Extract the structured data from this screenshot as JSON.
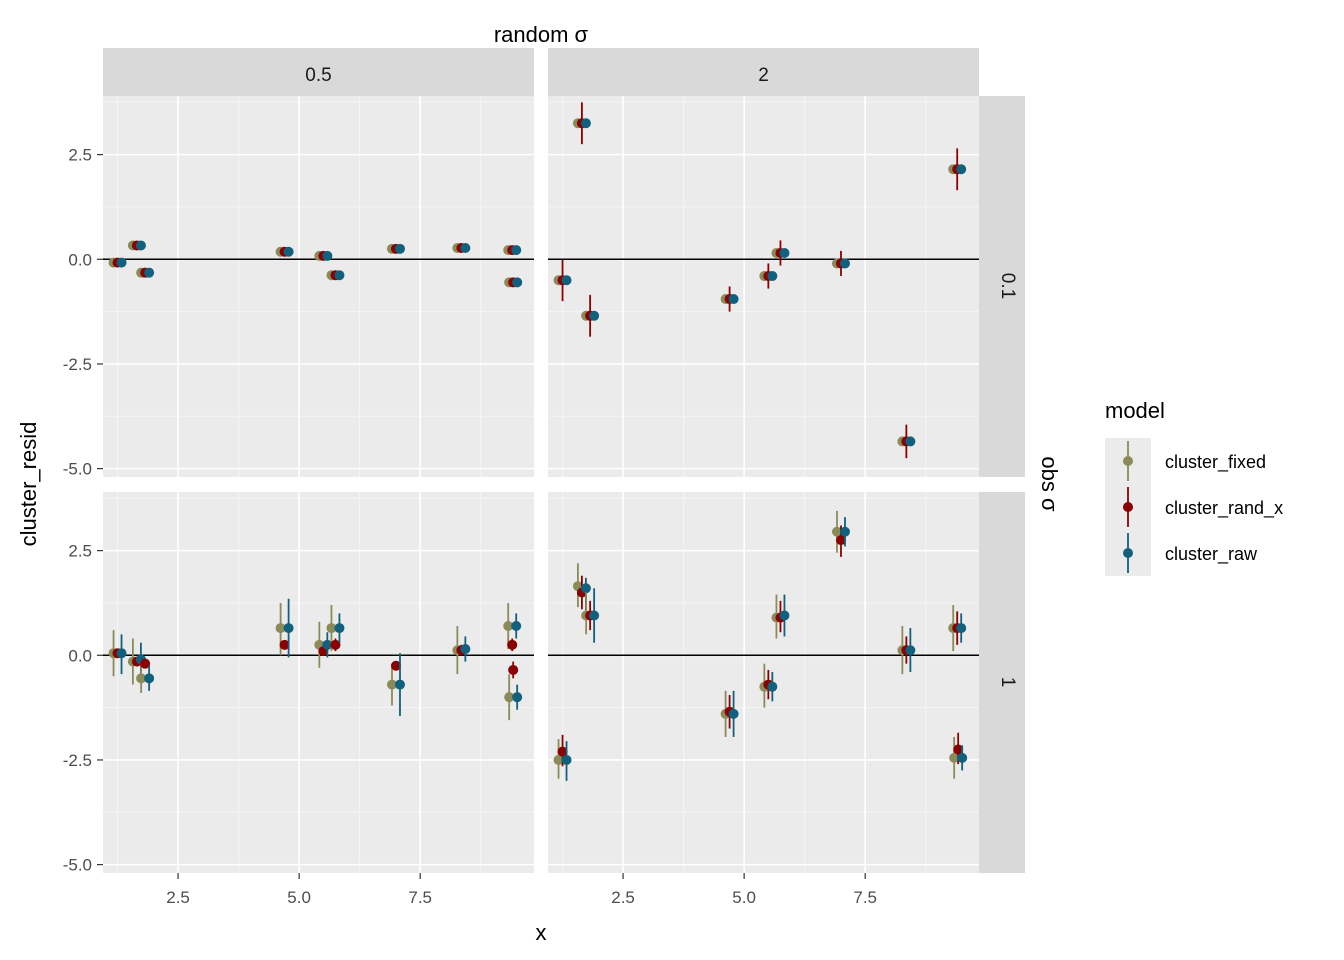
{
  "chart_data": {
    "type": "scatter",
    "geom": "pointrange",
    "facet_col_title": "random σ",
    "facet_row_title": "obs σ",
    "facet_cols": [
      "0.5",
      "2"
    ],
    "facet_rows": [
      "0.1",
      "1"
    ],
    "xlabel": "x",
    "ylabel": "cluster_resid",
    "xlim": [
      0.95,
      9.85
    ],
    "ylim": [
      -5.2,
      3.9
    ],
    "x_ticks": [
      2.5,
      5.0,
      7.5
    ],
    "x_tick_labels": [
      "2.5",
      "5.0",
      "7.5"
    ],
    "y_ticks": [
      2.5,
      0.0,
      -2.5,
      -5.0
    ],
    "y_tick_labels": [
      "2.5",
      "0.0",
      "-2.5",
      "-5.0"
    ],
    "hline": 0,
    "grid": true,
    "legend": {
      "title": "model",
      "position": "right",
      "entries": [
        "cluster_fixed",
        "cluster_rand_x",
        "cluster_raw"
      ]
    },
    "series": [
      {
        "name": "cluster_fixed",
        "color": "#8b8b5a"
      },
      {
        "name": "cluster_rand_x",
        "color": "#8b0000"
      },
      {
        "name": "cluster_raw",
        "color": "#10607e"
      }
    ],
    "panels": [
      {
        "col": "0.5",
        "row": "0.1",
        "points": [
          {
            "x": 1.25,
            "fixed": [
              -0.08,
              -0.12,
              -0.04
            ],
            "rand_x": [
              -0.08,
              -0.12,
              -0.04
            ],
            "raw": [
              -0.08,
              -0.12,
              -0.04
            ]
          },
          {
            "x": 1.65,
            "fixed": [
              0.33,
              0.28,
              0.38
            ],
            "rand_x": [
              0.33,
              0.28,
              0.38
            ],
            "raw": [
              0.33,
              0.28,
              0.38
            ]
          },
          {
            "x": 1.82,
            "fixed": [
              -0.32,
              -0.38,
              -0.26
            ],
            "rand_x": [
              -0.32,
              -0.4,
              -0.24
            ],
            "raw": [
              -0.32,
              -0.38,
              -0.26
            ]
          },
          {
            "x": 4.7,
            "fixed": [
              0.18,
              0.13,
              0.23
            ],
            "rand_x": [
              0.18,
              0.13,
              0.23
            ],
            "raw": [
              0.18,
              0.13,
              0.23
            ]
          },
          {
            "x": 5.5,
            "fixed": [
              0.08,
              0.03,
              0.13
            ],
            "rand_x": [
              0.08,
              0.03,
              0.13
            ],
            "raw": [
              0.08,
              0.03,
              0.13
            ]
          },
          {
            "x": 5.75,
            "fixed": [
              -0.38,
              -0.44,
              -0.32
            ],
            "rand_x": [
              -0.38,
              -0.44,
              -0.32
            ],
            "raw": [
              -0.38,
              -0.44,
              -0.32
            ]
          },
          {
            "x": 7.0,
            "fixed": [
              0.25,
              0.2,
              0.3
            ],
            "rand_x": [
              0.25,
              0.2,
              0.3
            ],
            "raw": [
              0.25,
              0.2,
              0.3
            ]
          },
          {
            "x": 8.35,
            "fixed": [
              0.27,
              0.22,
              0.32
            ],
            "rand_x": [
              0.27,
              0.22,
              0.32
            ],
            "raw": [
              0.27,
              0.22,
              0.32
            ]
          },
          {
            "x": 9.4,
            "fixed": [
              0.22,
              0.17,
              0.27
            ],
            "rand_x": [
              0.22,
              0.17,
              0.27
            ],
            "raw": [
              0.22,
              0.17,
              0.27
            ]
          },
          {
            "x": 9.42,
            "fixed": [
              -0.55,
              -0.61,
              -0.49
            ],
            "rand_x": [
              -0.55,
              -0.61,
              -0.49
            ],
            "raw": [
              -0.55,
              -0.61,
              -0.49
            ]
          }
        ]
      },
      {
        "col": "2",
        "row": "0.1",
        "points": [
          {
            "x": 1.25,
            "fixed": [
              -0.5,
              -0.55,
              -0.45
            ],
            "rand_x": [
              -0.5,
              -1.0,
              0.0
            ],
            "raw": [
              -0.5,
              -0.55,
              -0.45
            ]
          },
          {
            "x": 1.65,
            "fixed": [
              3.25,
              3.2,
              3.3
            ],
            "rand_x": [
              3.25,
              2.75,
              3.75
            ],
            "raw": [
              3.25,
              3.2,
              3.3
            ]
          },
          {
            "x": 1.82,
            "fixed": [
              -1.35,
              -1.4,
              -1.3
            ],
            "rand_x": [
              -1.35,
              -1.85,
              -0.85
            ],
            "raw": [
              -1.35,
              -1.4,
              -1.3
            ]
          },
          {
            "x": 4.7,
            "fixed": [
              -0.95,
              -1.0,
              -0.9
            ],
            "rand_x": [
              -0.95,
              -1.25,
              -0.65
            ],
            "raw": [
              -0.95,
              -1.0,
              -0.9
            ]
          },
          {
            "x": 5.5,
            "fixed": [
              -0.4,
              -0.45,
              -0.35
            ],
            "rand_x": [
              -0.4,
              -0.7,
              -0.1
            ],
            "raw": [
              -0.4,
              -0.45,
              -0.35
            ]
          },
          {
            "x": 5.75,
            "fixed": [
              0.15,
              0.1,
              0.2
            ],
            "rand_x": [
              0.15,
              -0.15,
              0.45
            ],
            "raw": [
              0.15,
              0.1,
              0.2
            ]
          },
          {
            "x": 7.0,
            "fixed": [
              -0.1,
              -0.15,
              -0.05
            ],
            "rand_x": [
              -0.1,
              -0.4,
              0.2
            ],
            "raw": [
              -0.1,
              -0.15,
              -0.05
            ]
          },
          {
            "x": 8.35,
            "fixed": [
              -4.35,
              -4.4,
              -4.3
            ],
            "rand_x": [
              -4.35,
              -4.75,
              -3.95
            ],
            "raw": [
              -4.35,
              -4.4,
              -4.3
            ]
          },
          {
            "x": 9.4,
            "fixed": [
              2.15,
              2.1,
              2.2
            ],
            "rand_x": [
              2.15,
              1.65,
              2.65
            ],
            "raw": [
              2.15,
              2.1,
              2.2
            ]
          }
        ]
      },
      {
        "col": "0.5",
        "row": "1",
        "points": [
          {
            "x": 1.25,
            "fixed": [
              0.05,
              -0.5,
              0.6
            ],
            "rand_x": [
              0.05,
              0.0,
              0.1
            ],
            "raw": [
              0.05,
              -0.45,
              0.5
            ]
          },
          {
            "x": 1.65,
            "fixed": [
              -0.15,
              -0.7,
              0.4
            ],
            "rand_x": [
              -0.15,
              -0.2,
              -0.1
            ],
            "raw": [
              -0.1,
              -0.6,
              0.3
            ]
          },
          {
            "x": 1.82,
            "fixed": [
              -0.55,
              -0.9,
              -0.2
            ],
            "rand_x": [
              -0.2,
              -0.3,
              -0.1
            ],
            "raw": [
              -0.55,
              -0.85,
              -0.25
            ]
          },
          {
            "x": 4.7,
            "fixed": [
              0.65,
              0.0,
              1.25
            ],
            "rand_x": [
              0.25,
              0.15,
              0.35
            ],
            "raw": [
              0.65,
              -0.05,
              1.35
            ]
          },
          {
            "x": 5.5,
            "fixed": [
              0.25,
              -0.3,
              0.8
            ],
            "rand_x": [
              0.1,
              0.0,
              0.2
            ],
            "raw": [
              0.25,
              -0.05,
              0.55
            ]
          },
          {
            "x": 5.75,
            "fixed": [
              0.65,
              0.1,
              1.2
            ],
            "rand_x": [
              0.25,
              0.1,
              0.4
            ],
            "raw": [
              0.65,
              0.3,
              1.0
            ]
          },
          {
            "x": 7.0,
            "fixed": [
              -0.7,
              -1.2,
              -0.2
            ],
            "rand_x": [
              -0.25,
              -0.35,
              -0.15
            ],
            "raw": [
              -0.7,
              -1.45,
              0.05
            ]
          },
          {
            "x": 8.35,
            "fixed": [
              0.12,
              -0.45,
              0.7
            ],
            "rand_x": [
              0.12,
              0.0,
              0.25
            ],
            "raw": [
              0.15,
              -0.15,
              0.45
            ]
          },
          {
            "x": 9.4,
            "fixed": [
              0.7,
              0.15,
              1.25
            ],
            "rand_x": [
              0.25,
              0.1,
              0.4
            ],
            "raw": [
              0.7,
              0.4,
              1.0
            ]
          },
          {
            "x": 9.42,
            "fixed": [
              -1.0,
              -1.55,
              -0.45
            ],
            "rand_x": [
              -0.35,
              -0.55,
              -0.15
            ],
            "raw": [
              -1.0,
              -1.3,
              -0.7
            ]
          }
        ]
      },
      {
        "col": "2",
        "row": "1",
        "points": [
          {
            "x": 1.25,
            "fixed": [
              -2.5,
              -2.95,
              -2.0
            ],
            "rand_x": [
              -2.3,
              -2.65,
              -1.9
            ],
            "raw": [
              -2.5,
              -3.0,
              -2.05
            ]
          },
          {
            "x": 1.65,
            "fixed": [
              1.65,
              1.15,
              2.2
            ],
            "rand_x": [
              1.5,
              1.1,
              1.9
            ],
            "raw": [
              1.6,
              1.05,
              1.85
            ]
          },
          {
            "x": 1.82,
            "fixed": [
              0.95,
              0.5,
              1.5
            ],
            "rand_x": [
              0.95,
              0.6,
              1.3
            ],
            "raw": [
              0.95,
              0.3,
              1.6
            ]
          },
          {
            "x": 4.7,
            "fixed": [
              -1.4,
              -1.95,
              -0.85
            ],
            "rand_x": [
              -1.35,
              -1.75,
              -0.95
            ],
            "raw": [
              -1.4,
              -1.95,
              -0.85
            ]
          },
          {
            "x": 5.5,
            "fixed": [
              -0.75,
              -1.25,
              -0.2
            ],
            "rand_x": [
              -0.7,
              -1.05,
              -0.35
            ],
            "raw": [
              -0.75,
              -1.1,
              -0.4
            ]
          },
          {
            "x": 5.75,
            "fixed": [
              0.9,
              0.4,
              1.45
            ],
            "rand_x": [
              0.9,
              0.55,
              1.3
            ],
            "raw": [
              0.95,
              0.45,
              1.45
            ]
          },
          {
            "x": 7.0,
            "fixed": [
              2.95,
              2.45,
              3.45
            ],
            "rand_x": [
              2.75,
              2.35,
              3.1
            ],
            "raw": [
              2.95,
              2.6,
              3.3
            ]
          },
          {
            "x": 8.35,
            "fixed": [
              0.12,
              -0.45,
              0.7
            ],
            "rand_x": [
              0.12,
              -0.2,
              0.45
            ],
            "raw": [
              0.12,
              -0.4,
              0.65
            ]
          },
          {
            "x": 9.4,
            "fixed": [
              0.65,
              0.1,
              1.2
            ],
            "rand_x": [
              0.65,
              0.25,
              1.05
            ],
            "raw": [
              0.65,
              0.3,
              1.0
            ]
          },
          {
            "x": 9.42,
            "fixed": [
              -2.45,
              -2.95,
              -1.95
            ],
            "rand_x": [
              -2.25,
              -2.6,
              -1.85
            ],
            "raw": [
              -2.45,
              -2.75,
              -2.15
            ]
          }
        ]
      }
    ]
  }
}
